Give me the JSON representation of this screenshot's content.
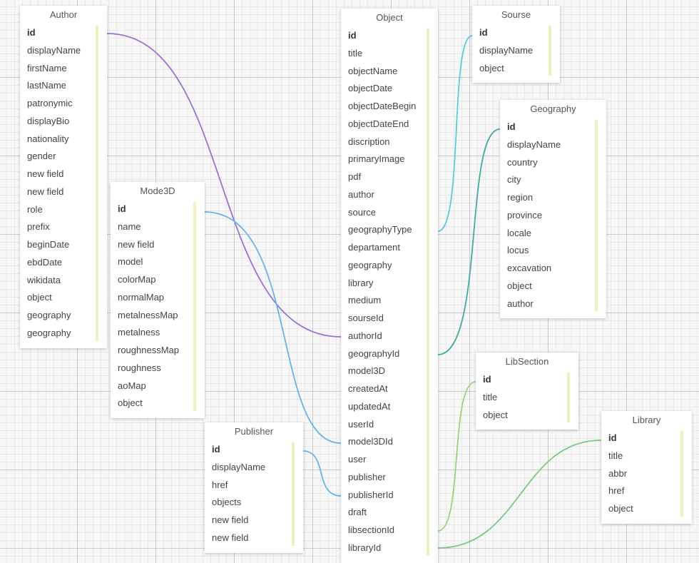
{
  "tables": [
    {
      "key": "author",
      "title": "Author",
      "fields": [
        "id",
        "displayName",
        "firstName",
        "lastName",
        "patronymic",
        "displayBio",
        "nationality",
        "gender",
        "new field",
        "new field",
        "role",
        "prefix",
        "beginDate",
        "ebdDate",
        "wikidata",
        "object",
        "geography",
        "geography"
      ]
    },
    {
      "key": "mode3d",
      "title": "Mode3D",
      "fields": [
        "id",
        "name",
        "new field",
        "model",
        "colorMap",
        "normalMap",
        "metalnessMap",
        "metalness",
        "roughnessMap",
        "roughness",
        "aoMap",
        "object"
      ]
    },
    {
      "key": "publisher",
      "title": "Publisher",
      "fields": [
        "id",
        "displayName",
        "href",
        "objects",
        "new field",
        "new field"
      ]
    },
    {
      "key": "object",
      "title": "Object",
      "fields": [
        "id",
        "title",
        "objectName",
        "objectDate",
        "objectDateBegin",
        "objectDateEnd",
        "discription",
        "primaryImage",
        "pdf",
        "author",
        "source",
        "geographyType",
        "departament",
        "geography",
        "library",
        "medium",
        "sourseId",
        "authorId",
        "geographyId",
        "model3D",
        "createdAt",
        "updatedAt",
        "userId",
        "model3DId",
        "user",
        "publisher",
        "publisherId",
        "draft",
        "libsectionId",
        "libraryId"
      ]
    },
    {
      "key": "sourse",
      "title": "Sourse",
      "fields": [
        "id",
        "displayName",
        "object"
      ]
    },
    {
      "key": "geography",
      "title": "Geography",
      "fields": [
        "id",
        "displayName",
        "country",
        "city",
        "region",
        "province",
        "locale",
        "locus",
        "excavation",
        "object",
        "author"
      ]
    },
    {
      "key": "libsection",
      "title": "LibSection",
      "fields": [
        "id",
        "title",
        "object"
      ]
    },
    {
      "key": "library",
      "title": "Library",
      "fields": [
        "id",
        "title",
        "abbr",
        "href",
        "object"
      ]
    }
  ],
  "colors": {
    "author": "#9c72d0",
    "mode3d": "#63b6ea",
    "publisher": "#63b6ea",
    "sourse": "#5ccbd9",
    "geography": "#45aaa0",
    "libsection": "#9fcf7d",
    "library": "#7cc783"
  }
}
